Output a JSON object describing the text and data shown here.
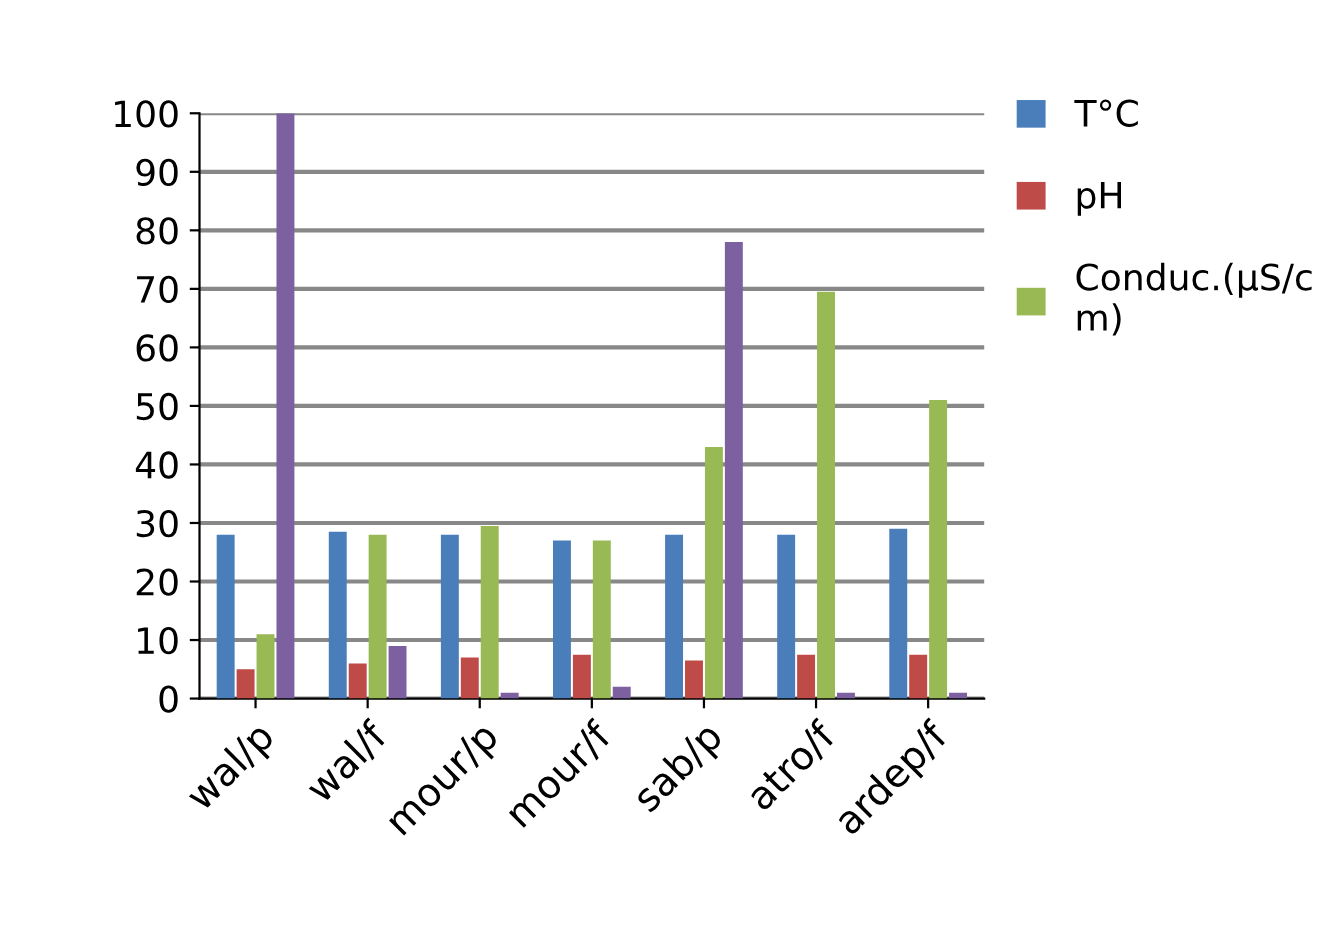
{
  "chart_data": {
    "type": "bar",
    "categories": [
      "wal/p",
      "wal/f",
      "mour/p",
      "mour/f",
      "sab/p",
      "atro/f",
      "ardep/f"
    ],
    "series": [
      {
        "name": "T°C",
        "color": "#4a7ebb",
        "values": [
          28,
          28.5,
          28,
          27,
          28,
          28,
          29
        ]
      },
      {
        "name": "pH",
        "color": "#be4b48",
        "values": [
          5,
          6,
          7,
          7.5,
          6.5,
          7.5,
          7.5
        ]
      },
      {
        "name": "Conduc.(µS/c\nm)",
        "color": "#98b954",
        "values": [
          11,
          28,
          29.5,
          27,
          43,
          69.5,
          51
        ]
      },
      {
        "color": "#7d60a0",
        "values": [
          100,
          9,
          1,
          2,
          78,
          1,
          1
        ]
      }
    ],
    "ylim": [
      0,
      100
    ],
    "yticks": [
      0,
      10,
      20,
      30,
      40,
      50,
      60,
      70,
      80,
      90,
      100
    ],
    "grid": "y",
    "legend": "top right"
  }
}
